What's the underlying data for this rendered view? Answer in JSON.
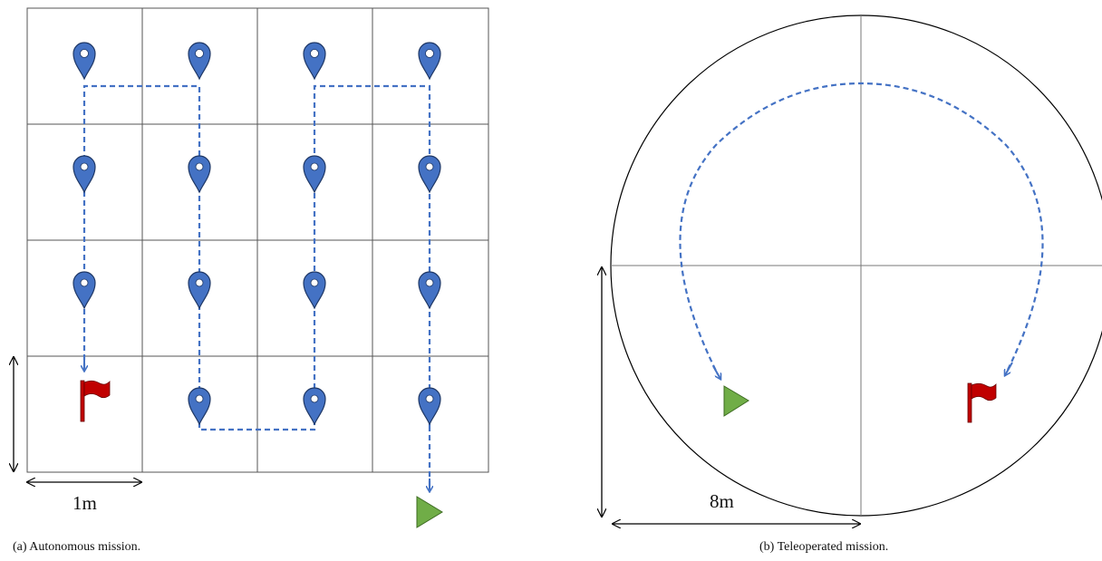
{
  "panel_a": {
    "caption": "(a)  Autonomous mission.",
    "scale_label": "1m",
    "grid": {
      "rows": 4,
      "cols": 4
    },
    "waypoints": [
      {
        "col": 0,
        "row": 0
      },
      {
        "col": 1,
        "row": 0
      },
      {
        "col": 2,
        "row": 0
      },
      {
        "col": 3,
        "row": 0
      },
      {
        "col": 0,
        "row": 1
      },
      {
        "col": 1,
        "row": 1
      },
      {
        "col": 2,
        "row": 1
      },
      {
        "col": 3,
        "row": 1
      },
      {
        "col": 0,
        "row": 2
      },
      {
        "col": 1,
        "row": 2
      },
      {
        "col": 2,
        "row": 2
      },
      {
        "col": 3,
        "row": 2
      },
      {
        "col": 1,
        "row": 3
      },
      {
        "col": 2,
        "row": 3
      },
      {
        "col": 3,
        "row": 3
      }
    ]
  },
  "panel_b": {
    "caption": "(b)  Teleoperated mission.",
    "scale_label": "8m"
  },
  "colors": {
    "path": "#4472C4",
    "marker_fill": "#4472C4",
    "marker_stroke": "#1f3866",
    "flag": "#C00000",
    "start": "#70AD47",
    "grid": "#555555"
  }
}
